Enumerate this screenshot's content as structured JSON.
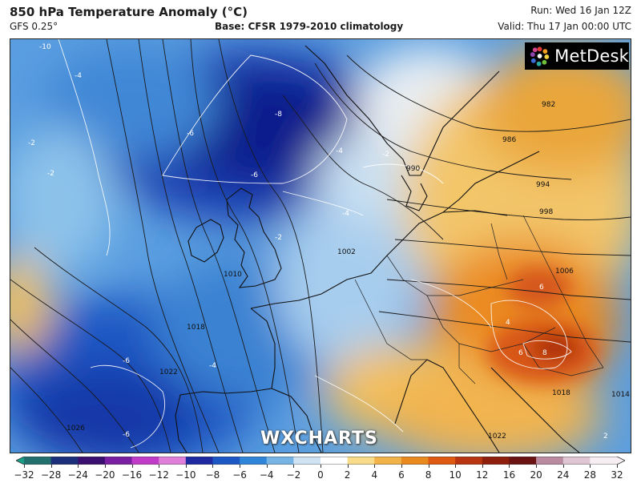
{
  "header": {
    "title": "850 hPa Temperature Anomaly (°C)",
    "model": "GFS 0.25°",
    "base": "Base: CFSR 1979-2010 climatology",
    "run": "Run: Wed 16 Jan 12Z",
    "valid": "Valid: Thu 17 Jan 00:00 UTC"
  },
  "brand": {
    "name": "MetDesk",
    "icon": "metdesk-logo-icon"
  },
  "watermark": "WXCHARTS",
  "map": {
    "isobar_labels": [
      "982",
      "986",
      "990",
      "994",
      "998",
      "1002",
      "1006",
      "1010",
      "1018",
      "1022",
      "1026",
      "1018",
      "1022",
      "1014"
    ],
    "anomaly_labels": [
      "-4",
      "-2",
      "-2",
      "-4",
      "-6",
      "-8",
      "-6",
      "-4",
      "-6",
      "-6",
      "-4",
      "-2",
      "-2",
      "-10",
      "4",
      "6",
      "8",
      "6",
      "2"
    ]
  },
  "colorbar": {
    "ticks": [
      "−32",
      "−28",
      "−24",
      "−20",
      "−16",
      "−12",
      "−10",
      "−8",
      "−6",
      "−4",
      "−2",
      "0",
      "2",
      "4",
      "6",
      "8",
      "10",
      "12",
      "16",
      "20",
      "24",
      "28",
      "32"
    ],
    "colors": [
      "#1a9e86",
      "#22706e",
      "#1b2f7a",
      "#3b0f70",
      "#7b1fa2",
      "#c13bc9",
      "#e07fd9",
      "#1f2aa0",
      "#1c57c4",
      "#2f86d8",
      "#77b4e6",
      "#cfe3f3",
      "#ffffff",
      "#f8dc8a",
      "#f2b24a",
      "#e98a1f",
      "#de5a12",
      "#b93410",
      "#8f1f0d",
      "#6b1313",
      "#b98aa0",
      "#e0c6d3",
      "#f7eef3"
    ]
  }
}
